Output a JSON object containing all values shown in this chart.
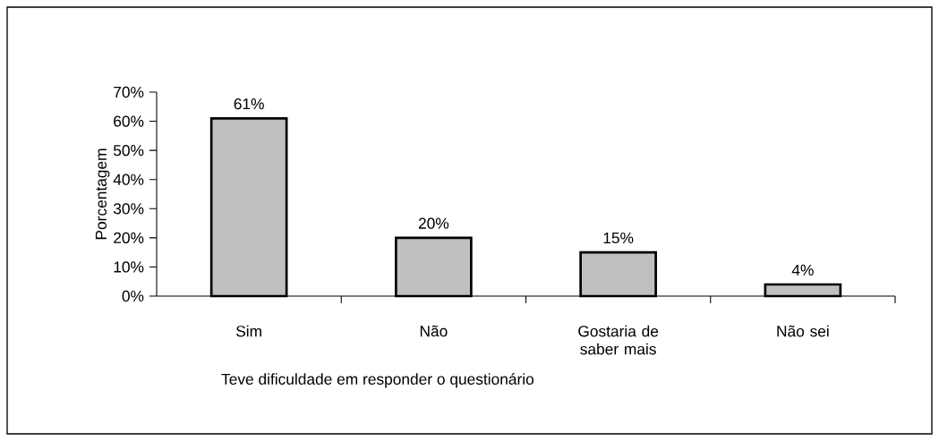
{
  "chart_data": {
    "type": "bar",
    "xlabel": "Teve dificuldade em responder o questionário",
    "ylabel": "Porcentagem",
    "categories": [
      "Sim",
      "Não",
      "Gostaria de saber mais",
      "Não sei"
    ],
    "values": [
      61,
      20,
      15,
      4
    ],
    "value_labels": [
      "61%",
      "20%",
      "15%",
      "4%"
    ],
    "color": "#c0c0c0",
    "ylim": [
      0,
      70
    ],
    "yticks": [
      {
        "value": 0,
        "label": "0%"
      },
      {
        "value": 10,
        "label": "10%"
      },
      {
        "value": 20,
        "label": "20%"
      },
      {
        "value": 30,
        "label": "30%"
      },
      {
        "value": 40,
        "label": "40%"
      },
      {
        "value": 50,
        "label": "50%"
      },
      {
        "value": 60,
        "label": "60%"
      },
      {
        "value": 70,
        "label": "70%"
      }
    ]
  }
}
